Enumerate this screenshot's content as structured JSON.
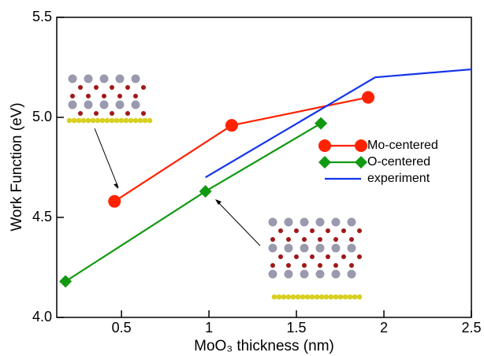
{
  "chart_data": {
    "type": "line",
    "x_label": "MoO₃ thickness (nm)",
    "y_label": "Work Function (eV)",
    "xlim": [
      0.13,
      2.5
    ],
    "ylim": [
      4.0,
      5.5
    ],
    "xticks": [
      0.5,
      1,
      1.5,
      2,
      2.5
    ],
    "yticks": [
      {
        "value": 4.0,
        "label": "4.0"
      },
      {
        "value": 4.5,
        "label": "4.5"
      },
      {
        "value": 5.0,
        "label": "5.0"
      },
      {
        "value": 5.5,
        "label": "5.5"
      }
    ],
    "legend": "right",
    "series": [
      {
        "name": "Mo-centered",
        "color": "#ff2200",
        "marker": "circle",
        "x": [
          0.46,
          1.13,
          1.91
        ],
        "values": [
          4.58,
          4.96,
          5.1
        ]
      },
      {
        "name": "O-centered",
        "color": "#119911",
        "marker": "diamond",
        "x": [
          0.18,
          0.98,
          1.64
        ],
        "values": [
          4.18,
          4.63,
          4.97
        ]
      },
      {
        "name": "experiment",
        "color": "#1133ee",
        "marker": "none",
        "x": [
          0.98,
          1.95,
          2.5
        ],
        "values": [
          4.7,
          5.2,
          5.24
        ]
      }
    ]
  }
}
